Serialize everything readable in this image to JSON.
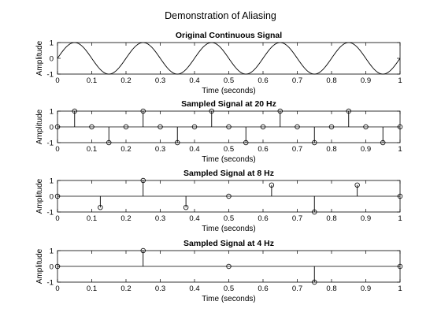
{
  "figure": {
    "suptitle": "Demonstration of Aliasing"
  },
  "chart_data": [
    {
      "type": "line",
      "title": "Original Continuous Signal",
      "xlabel": "Time (seconds)",
      "ylabel": "Amplitude",
      "xlim": [
        0,
        1
      ],
      "ylim": [
        -1,
        1
      ],
      "xticks": [
        "0",
        "0.1",
        "0.2",
        "0.3",
        "0.4",
        "0.5",
        "0.6",
        "0.7",
        "0.8",
        "0.9",
        "1"
      ],
      "yticks": [
        "-1",
        "0",
        "1"
      ],
      "signal": {
        "function": "sin",
        "frequency_hz": 5,
        "amplitude": 1
      }
    },
    {
      "type": "stem",
      "title": "Sampled Signal at 20 Hz",
      "xlabel": "Time (seconds)",
      "ylabel": "Amplitude",
      "xlim": [
        0,
        1
      ],
      "ylim": [
        -1,
        1
      ],
      "xticks": [
        "0",
        "0.1",
        "0.2",
        "0.3",
        "0.4",
        "0.5",
        "0.6",
        "0.7",
        "0.8",
        "0.9",
        "1"
      ],
      "yticks": [
        "-1",
        "0",
        "1"
      ],
      "x": [
        0,
        0.05,
        0.1,
        0.15,
        0.2,
        0.25,
        0.3,
        0.35,
        0.4,
        0.45,
        0.5,
        0.55,
        0.6,
        0.65,
        0.7,
        0.75,
        0.8,
        0.85,
        0.9,
        0.95,
        1
      ],
      "y": [
        0,
        1,
        0,
        -1,
        0,
        1,
        0,
        -1,
        0,
        1,
        0,
        -1,
        0,
        1,
        0,
        -1,
        0,
        1,
        0,
        -1,
        0
      ]
    },
    {
      "type": "stem",
      "title": "Sampled Signal at 8 Hz",
      "xlabel": "Time (seconds)",
      "ylabel": "Amplitude",
      "xlim": [
        0,
        1
      ],
      "ylim": [
        -1,
        1
      ],
      "xticks": [
        "0",
        "0.1",
        "0.2",
        "0.3",
        "0.4",
        "0.5",
        "0.6",
        "0.7",
        "0.8",
        "0.9",
        "1"
      ],
      "yticks": [
        "-1",
        "0",
        "1"
      ],
      "x": [
        0,
        0.125,
        0.25,
        0.375,
        0.5,
        0.625,
        0.75,
        0.875,
        1
      ],
      "y": [
        0,
        -0.71,
        1,
        -0.71,
        0,
        0.71,
        -1,
        0.71,
        0
      ]
    },
    {
      "type": "stem",
      "title": "Sampled Signal at 4 Hz",
      "xlabel": "Time (seconds)",
      "ylabel": "Amplitude",
      "xlim": [
        0,
        1
      ],
      "ylim": [
        -1,
        1
      ],
      "xticks": [
        "0",
        "0.1",
        "0.2",
        "0.3",
        "0.4",
        "0.5",
        "0.6",
        "0.7",
        "0.8",
        "0.9",
        "1"
      ],
      "yticks": [
        "-1",
        "0",
        "1"
      ],
      "x": [
        0,
        0.25,
        0.5,
        0.75,
        1
      ],
      "y": [
        0,
        1,
        0,
        -1,
        0
      ]
    }
  ]
}
